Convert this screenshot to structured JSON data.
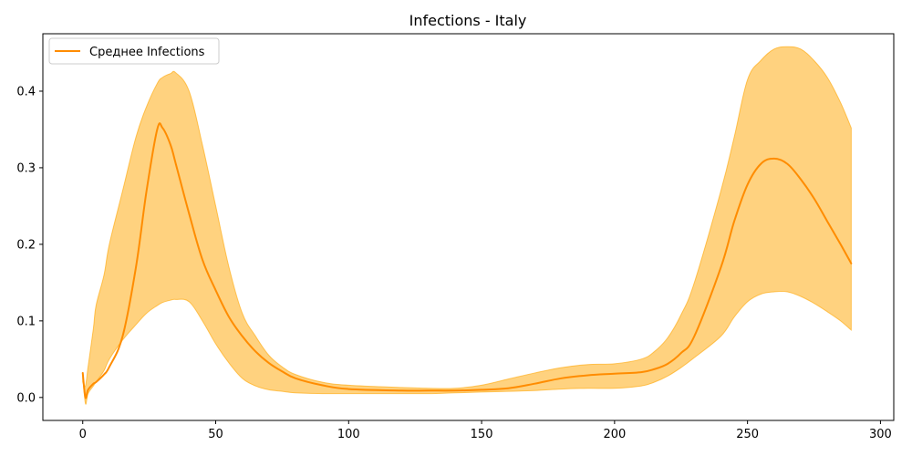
{
  "chart_data": {
    "type": "area",
    "title": "Infections - Italy",
    "xlabel": "",
    "ylabel": "",
    "xlim": [
      -15,
      305
    ],
    "ylim": [
      -0.03,
      0.475
    ],
    "xticks": [
      0,
      50,
      100,
      150,
      200,
      250,
      300
    ],
    "xtick_labels": [
      "0",
      "50",
      "100",
      "150",
      "200",
      "250",
      "300"
    ],
    "yticks": [
      0.0,
      0.1,
      0.2,
      0.3,
      0.4
    ],
    "ytick_labels": [
      "0.0",
      "0.1",
      "0.2",
      "0.3",
      "0.4"
    ],
    "grid": false,
    "legend": {
      "location": "upper-left",
      "entries": [
        "Среднее Infections"
      ]
    },
    "colors": {
      "line": "#ff8c00",
      "band_fill": "#ffa500",
      "band_fill_opacity": 0.5
    },
    "x": [
      0,
      1,
      2,
      4,
      5,
      8,
      10,
      15,
      20,
      24,
      28,
      30,
      33,
      35,
      40,
      45,
      50,
      55,
      60,
      65,
      70,
      75,
      80,
      90,
      100,
      120,
      130,
      140,
      150,
      160,
      170,
      180,
      190,
      200,
      210,
      215,
      220,
      225,
      230,
      240,
      245,
      250,
      255,
      260,
      265,
      270,
      275,
      280,
      285,
      289
    ],
    "series": [
      {
        "name": "Среднее Infections",
        "role": "mean",
        "values": [
          0.032,
          0.0,
          0.01,
          0.018,
          0.02,
          0.03,
          0.04,
          0.08,
          0.17,
          0.27,
          0.35,
          0.352,
          0.33,
          0.305,
          0.24,
          0.18,
          0.14,
          0.105,
          0.08,
          0.06,
          0.045,
          0.034,
          0.025,
          0.016,
          0.011,
          0.009,
          0.009,
          0.009,
          0.01,
          0.012,
          0.018,
          0.025,
          0.029,
          0.031,
          0.033,
          0.037,
          0.044,
          0.058,
          0.08,
          0.17,
          0.23,
          0.278,
          0.305,
          0.312,
          0.305,
          0.285,
          0.26,
          0.23,
          0.2,
          0.175
        ]
      },
      {
        "name": "",
        "role": "band_upper",
        "values": [
          0.02,
          0.015,
          0.04,
          0.09,
          0.12,
          0.16,
          0.2,
          0.27,
          0.34,
          0.38,
          0.41,
          0.418,
          0.423,
          0.424,
          0.4,
          0.33,
          0.25,
          0.17,
          0.11,
          0.08,
          0.055,
          0.04,
          0.03,
          0.02,
          0.016,
          0.013,
          0.012,
          0.012,
          0.016,
          0.024,
          0.032,
          0.039,
          0.043,
          0.044,
          0.05,
          0.06,
          0.078,
          0.108,
          0.15,
          0.27,
          0.34,
          0.415,
          0.44,
          0.455,
          0.458,
          0.455,
          0.44,
          0.418,
          0.385,
          0.352
        ]
      },
      {
        "name": "",
        "role": "band_lower",
        "values": [
          0.03,
          -0.008,
          0.005,
          0.015,
          0.02,
          0.035,
          0.05,
          0.075,
          0.095,
          0.11,
          0.12,
          0.124,
          0.127,
          0.128,
          0.125,
          0.1,
          0.07,
          0.045,
          0.025,
          0.015,
          0.01,
          0.008,
          0.006,
          0.005,
          0.005,
          0.005,
          0.005,
          0.006,
          0.007,
          0.008,
          0.009,
          0.011,
          0.012,
          0.012,
          0.015,
          0.02,
          0.028,
          0.039,
          0.052,
          0.08,
          0.105,
          0.125,
          0.135,
          0.138,
          0.138,
          0.132,
          0.123,
          0.112,
          0.1,
          0.088
        ]
      }
    ]
  }
}
